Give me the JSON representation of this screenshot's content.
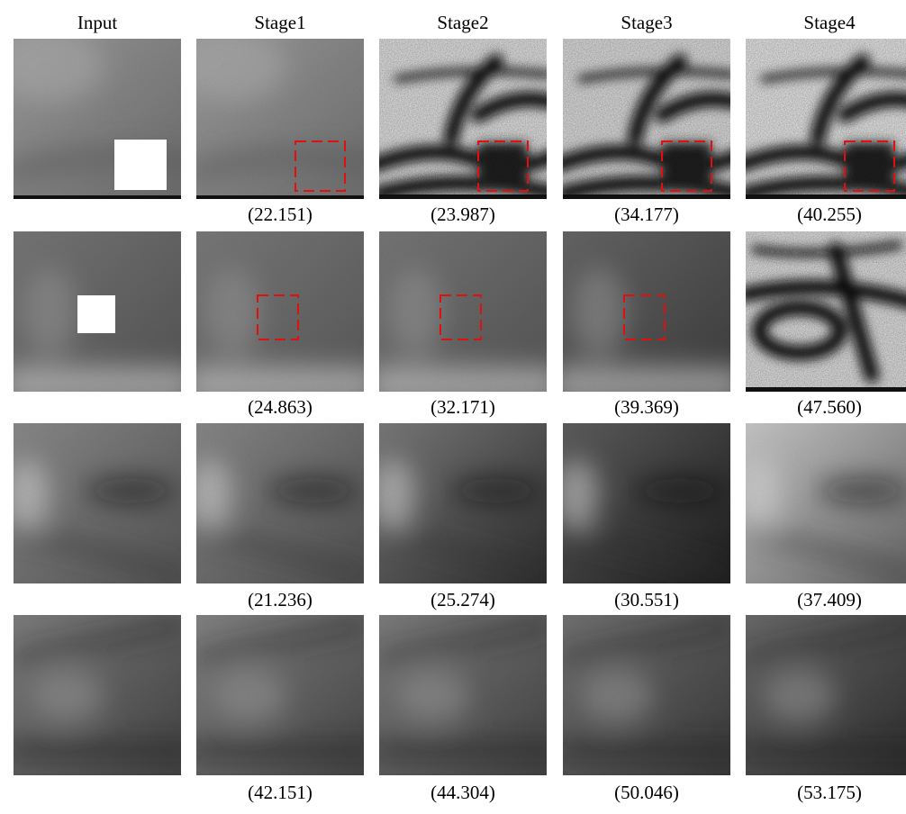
{
  "header": {
    "columns": [
      "Input",
      "Stage1",
      "Stage2",
      "Stage3",
      "Stage4"
    ]
  },
  "rows": [
    {
      "scores": [
        "(22.151)",
        "(23.987)",
        "(34.177)",
        "(40.255)"
      ]
    },
    {
      "scores": [
        "(24.863)",
        "(32.171)",
        "(39.369)",
        "(47.560)"
      ]
    },
    {
      "scores": [
        "(21.236)",
        "(25.274)",
        "(30.551)",
        "(37.409)"
      ]
    },
    {
      "scores": [
        "(42.151)",
        "(44.304)",
        "(50.046)",
        "(53.175)"
      ]
    }
  ]
}
